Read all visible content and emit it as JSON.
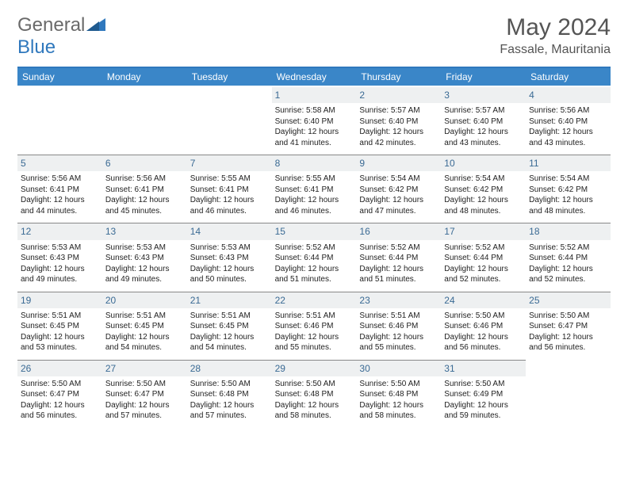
{
  "logo": {
    "text1": "General",
    "text2": "Blue"
  },
  "header": {
    "month_title": "May 2024",
    "location": "Fassale, Mauritania"
  },
  "colors": {
    "header_bar": "#3a86c8",
    "header_bar_border": "#2f78bd",
    "day_number_bg": "#eef0f1",
    "day_number_text": "#3a6a94",
    "background": "#ffffff"
  },
  "day_headers": [
    "Sunday",
    "Monday",
    "Tuesday",
    "Wednesday",
    "Thursday",
    "Friday",
    "Saturday"
  ],
  "weeks": [
    [
      {
        "n": "",
        "empty": true
      },
      {
        "n": "",
        "empty": true
      },
      {
        "n": "",
        "empty": true
      },
      {
        "n": "1",
        "sunrise": "Sunrise: 5:58 AM",
        "sunset": "Sunset: 6:40 PM",
        "daylight": "Daylight: 12 hours and 41 minutes."
      },
      {
        "n": "2",
        "sunrise": "Sunrise: 5:57 AM",
        "sunset": "Sunset: 6:40 PM",
        "daylight": "Daylight: 12 hours and 42 minutes."
      },
      {
        "n": "3",
        "sunrise": "Sunrise: 5:57 AM",
        "sunset": "Sunset: 6:40 PM",
        "daylight": "Daylight: 12 hours and 43 minutes."
      },
      {
        "n": "4",
        "sunrise": "Sunrise: 5:56 AM",
        "sunset": "Sunset: 6:40 PM",
        "daylight": "Daylight: 12 hours and 43 minutes."
      }
    ],
    [
      {
        "n": "5",
        "sunrise": "Sunrise: 5:56 AM",
        "sunset": "Sunset: 6:41 PM",
        "daylight": "Daylight: 12 hours and 44 minutes."
      },
      {
        "n": "6",
        "sunrise": "Sunrise: 5:56 AM",
        "sunset": "Sunset: 6:41 PM",
        "daylight": "Daylight: 12 hours and 45 minutes."
      },
      {
        "n": "7",
        "sunrise": "Sunrise: 5:55 AM",
        "sunset": "Sunset: 6:41 PM",
        "daylight": "Daylight: 12 hours and 46 minutes."
      },
      {
        "n": "8",
        "sunrise": "Sunrise: 5:55 AM",
        "sunset": "Sunset: 6:41 PM",
        "daylight": "Daylight: 12 hours and 46 minutes."
      },
      {
        "n": "9",
        "sunrise": "Sunrise: 5:54 AM",
        "sunset": "Sunset: 6:42 PM",
        "daylight": "Daylight: 12 hours and 47 minutes."
      },
      {
        "n": "10",
        "sunrise": "Sunrise: 5:54 AM",
        "sunset": "Sunset: 6:42 PM",
        "daylight": "Daylight: 12 hours and 48 minutes."
      },
      {
        "n": "11",
        "sunrise": "Sunrise: 5:54 AM",
        "sunset": "Sunset: 6:42 PM",
        "daylight": "Daylight: 12 hours and 48 minutes."
      }
    ],
    [
      {
        "n": "12",
        "sunrise": "Sunrise: 5:53 AM",
        "sunset": "Sunset: 6:43 PM",
        "daylight": "Daylight: 12 hours and 49 minutes."
      },
      {
        "n": "13",
        "sunrise": "Sunrise: 5:53 AM",
        "sunset": "Sunset: 6:43 PM",
        "daylight": "Daylight: 12 hours and 49 minutes."
      },
      {
        "n": "14",
        "sunrise": "Sunrise: 5:53 AM",
        "sunset": "Sunset: 6:43 PM",
        "daylight": "Daylight: 12 hours and 50 minutes."
      },
      {
        "n": "15",
        "sunrise": "Sunrise: 5:52 AM",
        "sunset": "Sunset: 6:44 PM",
        "daylight": "Daylight: 12 hours and 51 minutes."
      },
      {
        "n": "16",
        "sunrise": "Sunrise: 5:52 AM",
        "sunset": "Sunset: 6:44 PM",
        "daylight": "Daylight: 12 hours and 51 minutes."
      },
      {
        "n": "17",
        "sunrise": "Sunrise: 5:52 AM",
        "sunset": "Sunset: 6:44 PM",
        "daylight": "Daylight: 12 hours and 52 minutes."
      },
      {
        "n": "18",
        "sunrise": "Sunrise: 5:52 AM",
        "sunset": "Sunset: 6:44 PM",
        "daylight": "Daylight: 12 hours and 52 minutes."
      }
    ],
    [
      {
        "n": "19",
        "sunrise": "Sunrise: 5:51 AM",
        "sunset": "Sunset: 6:45 PM",
        "daylight": "Daylight: 12 hours and 53 minutes."
      },
      {
        "n": "20",
        "sunrise": "Sunrise: 5:51 AM",
        "sunset": "Sunset: 6:45 PM",
        "daylight": "Daylight: 12 hours and 54 minutes."
      },
      {
        "n": "21",
        "sunrise": "Sunrise: 5:51 AM",
        "sunset": "Sunset: 6:45 PM",
        "daylight": "Daylight: 12 hours and 54 minutes."
      },
      {
        "n": "22",
        "sunrise": "Sunrise: 5:51 AM",
        "sunset": "Sunset: 6:46 PM",
        "daylight": "Daylight: 12 hours and 55 minutes."
      },
      {
        "n": "23",
        "sunrise": "Sunrise: 5:51 AM",
        "sunset": "Sunset: 6:46 PM",
        "daylight": "Daylight: 12 hours and 55 minutes."
      },
      {
        "n": "24",
        "sunrise": "Sunrise: 5:50 AM",
        "sunset": "Sunset: 6:46 PM",
        "daylight": "Daylight: 12 hours and 56 minutes."
      },
      {
        "n": "25",
        "sunrise": "Sunrise: 5:50 AM",
        "sunset": "Sunset: 6:47 PM",
        "daylight": "Daylight: 12 hours and 56 minutes."
      }
    ],
    [
      {
        "n": "26",
        "sunrise": "Sunrise: 5:50 AM",
        "sunset": "Sunset: 6:47 PM",
        "daylight": "Daylight: 12 hours and 56 minutes."
      },
      {
        "n": "27",
        "sunrise": "Sunrise: 5:50 AM",
        "sunset": "Sunset: 6:47 PM",
        "daylight": "Daylight: 12 hours and 57 minutes."
      },
      {
        "n": "28",
        "sunrise": "Sunrise: 5:50 AM",
        "sunset": "Sunset: 6:48 PM",
        "daylight": "Daylight: 12 hours and 57 minutes."
      },
      {
        "n": "29",
        "sunrise": "Sunrise: 5:50 AM",
        "sunset": "Sunset: 6:48 PM",
        "daylight": "Daylight: 12 hours and 58 minutes."
      },
      {
        "n": "30",
        "sunrise": "Sunrise: 5:50 AM",
        "sunset": "Sunset: 6:48 PM",
        "daylight": "Daylight: 12 hours and 58 minutes."
      },
      {
        "n": "31",
        "sunrise": "Sunrise: 5:50 AM",
        "sunset": "Sunset: 6:49 PM",
        "daylight": "Daylight: 12 hours and 59 minutes."
      },
      {
        "n": "",
        "empty": true
      }
    ]
  ]
}
